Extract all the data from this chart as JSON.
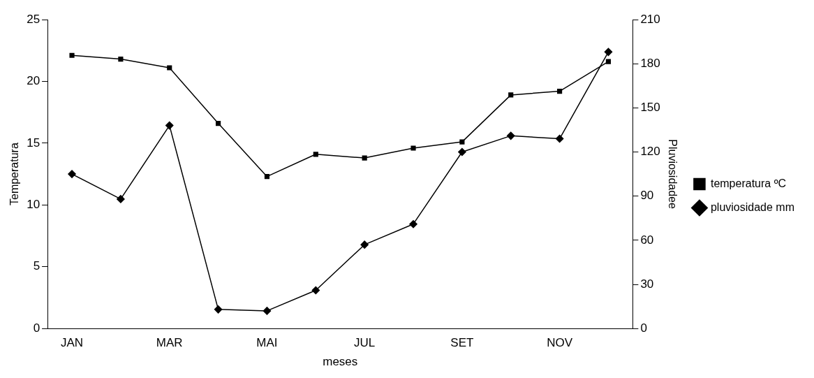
{
  "chart_data": {
    "type": "line",
    "xlabel": "meses",
    "ylabel": "Temperatura",
    "y2label": "Pluviosidadee",
    "categories": [
      "JAN",
      null,
      "MAR",
      null,
      "MAI",
      null,
      "JUL",
      null,
      "SET",
      null,
      "NOV",
      null
    ],
    "series": [
      {
        "name": "temperatura ºC",
        "color": "#000000",
        "marker": "square",
        "values": [
          22.1,
          21.8,
          21.1,
          16.6,
          12.3,
          14.1,
          13.8,
          14.6,
          15.1,
          18.9,
          19.2,
          21.6
        ]
      },
      {
        "name": "pluviosidade mm",
        "color": "#000000",
        "marker": "diamond",
        "axis": "y2",
        "values": [
          105,
          88,
          138,
          13,
          12,
          26,
          57,
          71,
          120,
          131,
          129,
          188
        ]
      }
    ],
    "ylim": [
      0,
      25
    ],
    "yticks": [
      0,
      5,
      10,
      15,
      20,
      25
    ],
    "y2lim": [
      0,
      210
    ],
    "y2ticks": [
      0,
      30,
      60,
      90,
      120,
      150,
      180,
      210
    ],
    "grid": false,
    "legend": "right",
    "line_style": "solid"
  }
}
